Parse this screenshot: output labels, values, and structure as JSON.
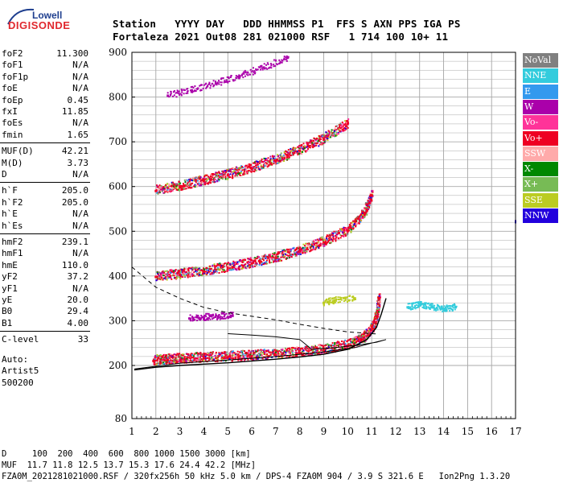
{
  "logo": {
    "line1": "Lowell",
    "line2": "DIGISONDE"
  },
  "header": {
    "labels_line": "Station   YYYY DAY   DDD HHMMSS P1  FFS S AXN PPS IGA PS",
    "values_line": "Fortaleza 2021 Out08 281 021000 RSF   1 714 100 10+ 11"
  },
  "params": {
    "group1": [
      {
        "name": "foF2",
        "value": "11.300"
      },
      {
        "name": "foF1",
        "value": "N/A"
      },
      {
        "name": "foF1p",
        "value": "N/A"
      },
      {
        "name": "foE",
        "value": "N/A"
      },
      {
        "name": "foEp",
        "value": "0.45"
      },
      {
        "name": "fxI",
        "value": "11.85"
      },
      {
        "name": "foEs",
        "value": "N/A"
      },
      {
        "name": "fmin",
        "value": "1.65"
      }
    ],
    "group2": [
      {
        "name": "MUF(D)",
        "value": "42.21"
      },
      {
        "name": "M(D)",
        "value": "3.73"
      },
      {
        "name": "D",
        "value": "N/A"
      }
    ],
    "group3": [
      {
        "name": "h`F",
        "value": "205.0"
      },
      {
        "name": "h`F2",
        "value": "205.0"
      },
      {
        "name": "h`E",
        "value": "N/A"
      },
      {
        "name": "h`Es",
        "value": "N/A"
      }
    ],
    "group4": [
      {
        "name": "hmF2",
        "value": "239.1"
      },
      {
        "name": "hmF1",
        "value": "N/A"
      },
      {
        "name": "hmE",
        "value": "110.0"
      },
      {
        "name": "yF2",
        "value": "37.2"
      },
      {
        "name": "yF1",
        "value": "N/A"
      },
      {
        "name": "yE",
        "value": "20.0"
      },
      {
        "name": "B0",
        "value": "29.4"
      },
      {
        "name": "B1",
        "value": "4.00"
      }
    ],
    "group5": [
      {
        "name": "C-level",
        "value": "33"
      }
    ],
    "auto": [
      "Auto:",
      "Artist5",
      "500200"
    ]
  },
  "legend": [
    {
      "label": "NoVal",
      "color": "#808080"
    },
    {
      "label": "NNE",
      "color": "#33ccdd"
    },
    {
      "label": "E",
      "color": "#3399ee"
    },
    {
      "label": "W",
      "color": "#aa00aa"
    },
    {
      "label": "Vo-",
      "color": "#ff3399"
    },
    {
      "label": "Vo+",
      "color": "#ee0022"
    },
    {
      "label": "SSW",
      "color": "#ffaaaa"
    },
    {
      "label": "X-",
      "color": "#008800"
    },
    {
      "label": "X+",
      "color": "#77bb55"
    },
    {
      "label": "SSE",
      "color": "#bbcc22"
    },
    {
      "label": "NNW",
      "color": "#2200dd"
    }
  ],
  "chart_data": {
    "type": "scatter",
    "title": "",
    "xlabel": "",
    "ylabel": "",
    "xlim": [
      1,
      17
    ],
    "ylim": [
      80,
      900
    ],
    "x_ticks": [
      "1",
      "2",
      "3",
      "4",
      "5",
      "6",
      "7",
      "8",
      "9",
      "10",
      "11",
      "12",
      "13",
      "14",
      "15",
      "16",
      "17"
    ],
    "y_ticks": [
      "80",
      "200",
      "300",
      "400",
      "500",
      "600",
      "700",
      "800",
      "900"
    ],
    "grid": true,
    "series": [
      {
        "name": "Vo+",
        "color": "#ee0022",
        "points": [
          [
            1.9,
            210
          ],
          [
            2.5,
            212
          ],
          [
            3.2,
            214
          ],
          [
            4.0,
            216
          ],
          [
            5.0,
            218
          ],
          [
            6.0,
            221
          ],
          [
            7.0,
            224
          ],
          [
            8.0,
            228
          ],
          [
            9.0,
            234
          ],
          [
            10.0,
            244
          ],
          [
            10.6,
            258
          ],
          [
            11.0,
            280
          ],
          [
            11.2,
            310
          ],
          [
            11.3,
            350
          ]
        ]
      },
      {
        "name": "Vo+",
        "color": "#ee0022",
        "points": [
          [
            2.0,
            398
          ],
          [
            3.0,
            402
          ],
          [
            4.0,
            410
          ],
          [
            5.0,
            418
          ],
          [
            6.0,
            428
          ],
          [
            7.0,
            440
          ],
          [
            8.0,
            455
          ],
          [
            9.0,
            475
          ],
          [
            10.0,
            500
          ],
          [
            10.7,
            540
          ],
          [
            11.0,
            580
          ]
        ]
      },
      {
        "name": "Vo+",
        "color": "#ee0022",
        "points": [
          [
            2.0,
            590
          ],
          [
            3.0,
            600
          ],
          [
            4.0,
            612
          ],
          [
            5.0,
            625
          ],
          [
            6.0,
            640
          ],
          [
            7.0,
            658
          ],
          [
            8.0,
            680
          ],
          [
            9.0,
            705
          ],
          [
            10.0,
            740
          ]
        ]
      },
      {
        "name": "W",
        "color": "#aa00aa",
        "points": [
          [
            2.5,
            803
          ],
          [
            3.5,
            815
          ],
          [
            4.5,
            830
          ],
          [
            5.5,
            847
          ],
          [
            6.5,
            866
          ],
          [
            7.5,
            888
          ]
        ]
      },
      {
        "name": "W",
        "color": "#aa00aa",
        "points": [
          [
            3.4,
            305
          ],
          [
            4.0,
            307
          ],
          [
            4.6,
            309
          ],
          [
            5.2,
            311
          ]
        ]
      },
      {
        "name": "NNE",
        "color": "#33ccdd",
        "points": [
          [
            12.5,
            330
          ],
          [
            13.0,
            335
          ],
          [
            13.5,
            330
          ],
          [
            14.0,
            325
          ],
          [
            14.5,
            330
          ]
        ]
      },
      {
        "name": "SSE",
        "color": "#bbcc22",
        "points": [
          [
            9.0,
            340
          ],
          [
            9.5,
            345
          ],
          [
            10.3,
            350
          ]
        ]
      }
    ],
    "profile_dashed": [
      [
        1.0,
        420
      ],
      [
        2.0,
        375
      ],
      [
        3.0,
        350
      ],
      [
        4.0,
        330
      ],
      [
        5.0,
        318
      ],
      [
        6.0,
        310
      ],
      [
        7.0,
        302
      ],
      [
        8.0,
        292
      ],
      [
        9.0,
        283
      ],
      [
        10.0,
        275
      ],
      [
        11.3,
        270
      ]
    ],
    "trace_black": [
      [
        1.1,
        190
      ],
      [
        2.0,
        196
      ],
      [
        3.0,
        200
      ],
      [
        4.0,
        203
      ],
      [
        5.0,
        206
      ],
      [
        6.0,
        210
      ],
      [
        7.0,
        214
      ],
      [
        8.0,
        219
      ],
      [
        9.0,
        225
      ],
      [
        10.0,
        236
      ],
      [
        10.8,
        258
      ],
      [
        11.2,
        285
      ],
      [
        11.4,
        315
      ],
      [
        11.6,
        350
      ]
    ],
    "profile_solid": [
      [
        1.1,
        192
      ],
      [
        3.0,
        205
      ],
      [
        5.0,
        212
      ],
      [
        7.0,
        220
      ],
      [
        9.0,
        230
      ],
      [
        10.3,
        240
      ],
      [
        11.0,
        250
      ],
      [
        11.6,
        258
      ],
      [
        11.2,
        252
      ],
      [
        10.5,
        246
      ],
      [
        9.5,
        240
      ],
      [
        8.5,
        236
      ],
      [
        8.0,
        258
      ],
      [
        7.0,
        264
      ],
      [
        6.0,
        268
      ],
      [
        5.0,
        271
      ]
    ]
  },
  "footer": {
    "line1": "D     100  200  400  600  800 1000 1500 3000 [km]",
    "line2": "MUF  11.7 11.8 12.5 13.7 15.3 17.6 24.4 42.2 [MHz]",
    "line3": "FZA0M_2021281021000.RSF / 320fx256h 50 kHz 5.0 km / DPS-4 FZA0M 904 / 3.9 S 321.6 E   Ion2Png 1.3.20"
  }
}
